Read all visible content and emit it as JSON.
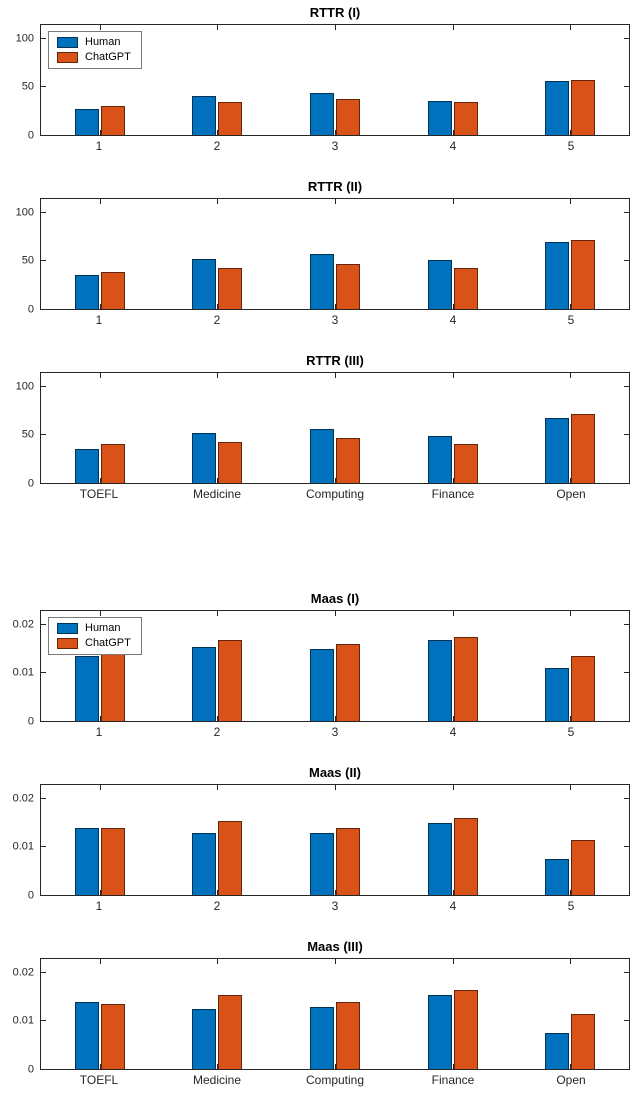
{
  "figure": {
    "background": "#ffffff",
    "axis_color": "#262626",
    "series_colors": {
      "human": "#0072BD",
      "chatgpt": "#D95319"
    },
    "legend_items": [
      "Human",
      "ChatGPT"
    ]
  },
  "chart_data": [
    {
      "type": "bar",
      "title": "RTTR (I)",
      "categories": [
        "1",
        "2",
        "3",
        "4",
        "5"
      ],
      "series": [
        {
          "name": "Human",
          "color": "#0072BD",
          "values": [
            27,
            41,
            44,
            36,
            56
          ]
        },
        {
          "name": "ChatGPT",
          "color": "#D95319",
          "values": [
            30,
            34,
            38,
            34,
            57
          ]
        }
      ],
      "yticks": [
        0,
        50,
        100
      ],
      "ytick_labels": [
        "0",
        "50",
        "100"
      ],
      "ylim": [
        0,
        115
      ],
      "grid": false,
      "legend": true,
      "legend_position": "top-left"
    },
    {
      "type": "bar",
      "title": "RTTR (II)",
      "categories": [
        "1",
        "2",
        "3",
        "4",
        "5"
      ],
      "series": [
        {
          "name": "Human",
          "color": "#0072BD",
          "values": [
            36,
            52,
            57,
            51,
            70
          ]
        },
        {
          "name": "ChatGPT",
          "color": "#D95319",
          "values": [
            39,
            43,
            47,
            43,
            72
          ]
        }
      ],
      "yticks": [
        0,
        50,
        100
      ],
      "ytick_labels": [
        "0",
        "50",
        "100"
      ],
      "ylim": [
        0,
        115
      ],
      "grid": false,
      "legend": false
    },
    {
      "type": "bar",
      "title": "RTTR (III)",
      "categories": [
        "TOEFL",
        "Medicine",
        "Computing",
        "Finance",
        "Open"
      ],
      "series": [
        {
          "name": "Human",
          "color": "#0072BD",
          "values": [
            36,
            52,
            56,
            49,
            68
          ]
        },
        {
          "name": "ChatGPT",
          "color": "#D95319",
          "values": [
            41,
            43,
            47,
            41,
            72
          ]
        }
      ],
      "yticks": [
        0,
        50,
        100
      ],
      "ytick_labels": [
        "0",
        "50",
        "100"
      ],
      "ylim": [
        0,
        115
      ],
      "grid": false,
      "legend": false
    },
    {
      "type": "bar",
      "title": "Maas (I)",
      "categories": [
        "1",
        "2",
        "3",
        "4",
        "5"
      ],
      "series": [
        {
          "name": "Human",
          "color": "#0072BD",
          "values": [
            0.0135,
            0.0155,
            0.015,
            0.017,
            0.011
          ]
        },
        {
          "name": "ChatGPT",
          "color": "#D95319",
          "values": [
            0.014,
            0.017,
            0.016,
            0.0175,
            0.0135
          ]
        }
      ],
      "yticks": [
        0,
        0.01,
        0.02
      ],
      "ytick_labels": [
        "0",
        "0.01",
        "0.02"
      ],
      "ylim": [
        0,
        0.023
      ],
      "grid": false,
      "legend": true,
      "legend_position": "top-left"
    },
    {
      "type": "bar",
      "title": "Maas (II)",
      "categories": [
        "1",
        "2",
        "3",
        "4",
        "5"
      ],
      "series": [
        {
          "name": "Human",
          "color": "#0072BD",
          "values": [
            0.014,
            0.013,
            0.013,
            0.015,
            0.0075
          ]
        },
        {
          "name": "ChatGPT",
          "color": "#D95319",
          "values": [
            0.014,
            0.0155,
            0.014,
            0.016,
            0.0115
          ]
        }
      ],
      "yticks": [
        0,
        0.01,
        0.02
      ],
      "ytick_labels": [
        "0",
        "0.01",
        "0.02"
      ],
      "ylim": [
        0,
        0.023
      ],
      "grid": false,
      "legend": false
    },
    {
      "type": "bar",
      "title": "Maas (III)",
      "categories": [
        "TOEFL",
        "Medicine",
        "Computing",
        "Finance",
        "Open"
      ],
      "series": [
        {
          "name": "Human",
          "color": "#0072BD",
          "values": [
            0.014,
            0.0125,
            0.013,
            0.0155,
            0.0075
          ]
        },
        {
          "name": "ChatGPT",
          "color": "#D95319",
          "values": [
            0.0135,
            0.0155,
            0.014,
            0.0165,
            0.0115
          ]
        }
      ],
      "yticks": [
        0,
        0.01,
        0.02
      ],
      "ytick_labels": [
        "0",
        "0.01",
        "0.02"
      ],
      "ylim": [
        0,
        0.023
      ],
      "grid": false,
      "legend": false
    }
  ]
}
